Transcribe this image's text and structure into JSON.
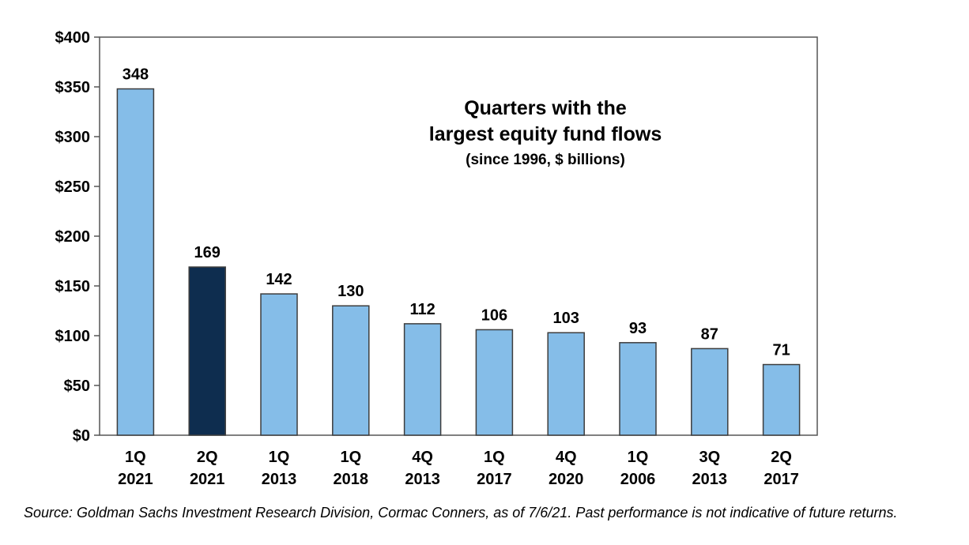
{
  "chart_data": {
    "type": "bar",
    "title": "Quarters with the",
    "title_line2": "largest equity fund flows",
    "subtitle": "(since 1996, $ billions)",
    "categories": [
      [
        "1Q",
        "2021"
      ],
      [
        "2Q",
        "2021"
      ],
      [
        "1Q",
        "2013"
      ],
      [
        "1Q",
        "2018"
      ],
      [
        "4Q",
        "2013"
      ],
      [
        "1Q",
        "2017"
      ],
      [
        "4Q",
        "2020"
      ],
      [
        "1Q",
        "2006"
      ],
      [
        "3Q",
        "2013"
      ],
      [
        "2Q",
        "2017"
      ]
    ],
    "values": [
      348,
      169,
      142,
      130,
      112,
      106,
      103,
      93,
      87,
      71
    ],
    "data_labels": [
      "348",
      "169",
      "142",
      "130",
      "112",
      "106",
      "103",
      "93",
      "87",
      "71"
    ],
    "highlight_index": 1,
    "ylim": [
      0,
      400
    ],
    "yticks": [
      0,
      50,
      100,
      150,
      200,
      250,
      300,
      350,
      400
    ],
    "ytick_labels": [
      "$0",
      "$50",
      "$100",
      "$150",
      "$200",
      "$250",
      "$300",
      "$350",
      "$400"
    ],
    "grid": false,
    "legend": "none"
  },
  "colors": {
    "bar": "#85bde8",
    "bar_highlight": "#0e2d4f",
    "bar_edge": "#3d3d3d",
    "frame": "#555555"
  },
  "source_note": "Source: Goldman Sachs Investment Research Division, Cormac Conners, as of 7/6/21. Past performance is not indicative of future returns."
}
